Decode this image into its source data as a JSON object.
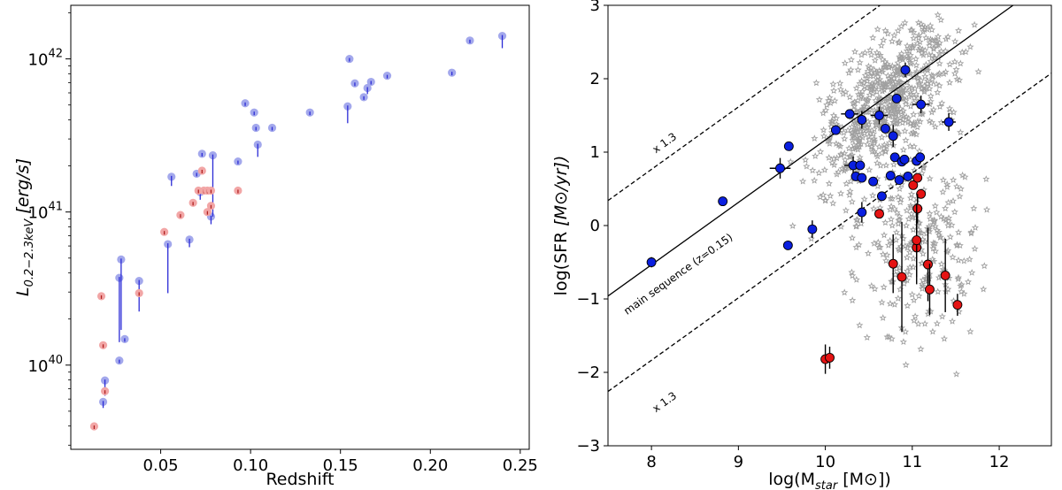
{
  "chart_data": [
    {
      "type": "scatter",
      "xlabel": "Redshift",
      "ylabel": "L0.2−2.3keV [erg/s]",
      "ylabel_main": "L",
      "ylabel_sub": "0.2−2.3keV",
      "ylabel_unit": "[erg/s]",
      "y_scale": "log",
      "xlim": [
        0.0,
        0.255
      ],
      "ylim_log10": [
        39.45,
        42.35
      ],
      "x_ticks": [
        "0.05",
        "0.10",
        "0.15",
        "0.20",
        "0.25"
      ],
      "y_tick_base": "10",
      "y_ticks": [
        {
          "log": 40,
          "exp": "40"
        },
        {
          "log": 41,
          "exp": "41"
        },
        {
          "log": 42,
          "exp": "42"
        }
      ],
      "colors": {
        "blue_fill": "#a3a8ec",
        "blue_bar": "#2b2bd6",
        "red_fill": "#f2a6a6",
        "red_bar": "#b02020"
      },
      "series": [
        {
          "color": "blue",
          "points": [
            {
              "x": 0.018,
              "y": 39.76,
              "ylo": 39.72
            },
            {
              "x": 0.019,
              "y": 39.9,
              "ylo": 39.8
            },
            {
              "x": 0.027,
              "y": 40.57,
              "ylo": 40.15
            },
            {
              "x": 0.027,
              "y": 40.03
            },
            {
              "x": 0.028,
              "y": 40.69,
              "ylo": 40.23
            },
            {
              "x": 0.03,
              "y": 40.17
            },
            {
              "x": 0.038,
              "y": 40.55,
              "ylo": 40.35
            },
            {
              "x": 0.054,
              "y": 40.79,
              "ylo": 40.47
            },
            {
              "x": 0.056,
              "y": 41.23,
              "ylo": 41.17
            },
            {
              "x": 0.066,
              "y": 40.82,
              "ylo": 40.77
            },
            {
              "x": 0.07,
              "y": 41.25
            },
            {
              "x": 0.072,
              "y": 41.13,
              "ylo": 41.08
            },
            {
              "x": 0.073,
              "y": 41.38
            },
            {
              "x": 0.078,
              "y": 40.97,
              "ylo": 40.92
            },
            {
              "x": 0.079,
              "y": 41.37,
              "ylo": 40.97
            },
            {
              "x": 0.093,
              "y": 41.33
            },
            {
              "x": 0.097,
              "y": 41.71
            },
            {
              "x": 0.102,
              "y": 41.65
            },
            {
              "x": 0.103,
              "y": 41.55
            },
            {
              "x": 0.104,
              "y": 41.44,
              "ylo": 41.36
            },
            {
              "x": 0.112,
              "y": 41.55
            },
            {
              "x": 0.133,
              "y": 41.65
            },
            {
              "x": 0.154,
              "y": 41.69,
              "ylo": 41.58
            },
            {
              "x": 0.155,
              "y": 42.0
            },
            {
              "x": 0.158,
              "y": 41.84
            },
            {
              "x": 0.163,
              "y": 41.75
            },
            {
              "x": 0.165,
              "y": 41.81,
              "ylo": 41.77
            },
            {
              "x": 0.167,
              "y": 41.85
            },
            {
              "x": 0.176,
              "y": 41.89
            },
            {
              "x": 0.212,
              "y": 41.91
            },
            {
              "x": 0.222,
              "y": 42.12
            },
            {
              "x": 0.24,
              "y": 42.15,
              "ylo": 42.07
            }
          ]
        },
        {
          "color": "red",
          "points": [
            {
              "x": 0.013,
              "y": 39.6
            },
            {
              "x": 0.017,
              "y": 40.45
            },
            {
              "x": 0.018,
              "y": 40.13
            },
            {
              "x": 0.019,
              "y": 39.83
            },
            {
              "x": 0.038,
              "y": 40.47
            },
            {
              "x": 0.052,
              "y": 40.87
            },
            {
              "x": 0.061,
              "y": 40.98
            },
            {
              "x": 0.068,
              "y": 41.06
            },
            {
              "x": 0.071,
              "y": 41.14
            },
            {
              "x": 0.073,
              "y": 41.27
            },
            {
              "x": 0.074,
              "y": 41.14
            },
            {
              "x": 0.076,
              "y": 41.14
            },
            {
              "x": 0.076,
              "y": 41.0
            },
            {
              "x": 0.078,
              "y": 41.04
            },
            {
              "x": 0.078,
              "y": 41.14
            },
            {
              "x": 0.093,
              "y": 41.14
            }
          ]
        }
      ]
    },
    {
      "type": "scatter",
      "xlabel_main": "log(M",
      "xlabel_sub": "star",
      "xlabel_unit": " [M⊙])",
      "ylabel_main": "log(SFR ",
      "ylabel_unit": "[M⊙/yr])",
      "xlim": [
        7.5,
        12.6
      ],
      "ylim": [
        -3,
        3
      ],
      "x_ticks": [
        "8",
        "9",
        "10",
        "11",
        "12"
      ],
      "y_ticks": [
        "3",
        "2",
        "1",
        "0",
        "−1",
        "−2",
        "−3"
      ],
      "annotations": {
        "main_sequence": "main sequence (z=0.15)",
        "upper_offset": "x 1.3",
        "lower_offset": "x 1.3"
      },
      "lines": [
        {
          "style": "solid",
          "slope": 0.85,
          "intercept": -7.335
        },
        {
          "style": "dashed",
          "slope": 0.85,
          "intercept": -6.035
        },
        {
          "style": "dashed",
          "slope": 0.85,
          "intercept": -8.635
        }
      ],
      "colors": {
        "blue": "#0a1fe0",
        "red": "#e51313",
        "stars": "#a0a0a0"
      },
      "series": [
        {
          "color": "blue",
          "points": [
            {
              "x": 8.0,
              "y": -0.5,
              "xerr": 0.05,
              "yerr": 0.07
            },
            {
              "x": 8.82,
              "y": 0.33
            },
            {
              "x": 9.48,
              "y": 0.78,
              "xerr": 0.12,
              "yerr": 0.14
            },
            {
              "x": 9.58,
              "y": 1.08
            },
            {
              "x": 9.57,
              "y": -0.27
            },
            {
              "x": 9.85,
              "y": -0.05,
              "yerr": 0.12
            },
            {
              "x": 10.12,
              "y": 1.3
            },
            {
              "x": 10.28,
              "y": 1.52,
              "xerr": 0.1
            },
            {
              "x": 10.32,
              "y": 0.82,
              "xerr": 0.1,
              "yerr": 0.12
            },
            {
              "x": 10.35,
              "y": 0.67
            },
            {
              "x": 10.4,
              "y": 0.82
            },
            {
              "x": 10.42,
              "y": 1.44,
              "yerr": 0.12
            },
            {
              "x": 10.42,
              "y": 0.18,
              "yerr": 0.14
            },
            {
              "x": 10.42,
              "y": 0.65
            },
            {
              "x": 10.55,
              "y": 0.6
            },
            {
              "x": 10.62,
              "y": 1.5,
              "xerr": 0.1,
              "yerr": 0.12
            },
            {
              "x": 10.65,
              "y": 0.4
            },
            {
              "x": 10.69,
              "y": 1.32
            },
            {
              "x": 10.75,
              "y": 0.68
            },
            {
              "x": 10.78,
              "y": 1.22,
              "yerr": 0.15
            },
            {
              "x": 10.8,
              "y": 0.93
            },
            {
              "x": 10.82,
              "y": 1.73
            },
            {
              "x": 10.85,
              "y": 0.62
            },
            {
              "x": 10.88,
              "y": 0.87
            },
            {
              "x": 10.91,
              "y": 0.9
            },
            {
              "x": 10.92,
              "y": 2.12,
              "yerr": 0.1
            },
            {
              "x": 10.95,
              "y": 0.67
            },
            {
              "x": 11.05,
              "y": 0.88
            },
            {
              "x": 11.09,
              "y": 0.93
            },
            {
              "x": 11.1,
              "y": 1.65,
              "xerr": 0.1,
              "yerr": 0.12
            },
            {
              "x": 11.42,
              "y": 1.41,
              "xerr": 0.08,
              "yerr": 0.12
            }
          ]
        },
        {
          "color": "red",
          "points": [
            {
              "x": 10.0,
              "y": -1.82,
              "yerr": 0.2
            },
            {
              "x": 10.05,
              "y": -1.8,
              "yerr": 0.15
            },
            {
              "x": 10.62,
              "y": 0.16
            },
            {
              "x": 11.01,
              "y": 0.55
            },
            {
              "x": 11.06,
              "y": 0.65
            },
            {
              "x": 11.1,
              "y": 0.43
            },
            {
              "x": 11.06,
              "y": 0.23,
              "yerr": 0.2
            },
            {
              "x": 11.05,
              "y": -0.3,
              "yerr": 0.5
            },
            {
              "x": 11.05,
              "y": -0.2,
              "yerr": 0.5
            },
            {
              "x": 10.78,
              "y": -0.52,
              "yerr": 0.4
            },
            {
              "x": 10.88,
              "y": -0.7,
              "yerr": 0.75
            },
            {
              "x": 11.18,
              "y": -0.53,
              "yerr": 0.5
            },
            {
              "x": 11.2,
              "y": -0.87,
              "yerr": 0.35
            },
            {
              "x": 11.38,
              "y": -0.68,
              "yerr": 0.5
            },
            {
              "x": 11.52,
              "y": -1.08,
              "yerr": 0.15
            }
          ]
        }
      ]
    }
  ]
}
